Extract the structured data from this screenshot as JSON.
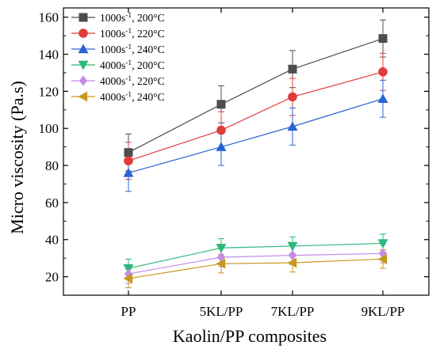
{
  "chart_data": {
    "type": "line",
    "xlabel": "Kaolin/PP composites",
    "ylabel": "Micro viscosity (Pa.s)",
    "categories": [
      "PP",
      "5KL/PP",
      "7KL/PP",
      "9KL/PP"
    ],
    "ylim": [
      10,
      165
    ],
    "yticks": [
      20,
      40,
      60,
      80,
      100,
      120,
      140,
      160
    ],
    "grid": false,
    "legend_position": "top-left",
    "series": [
      {
        "name_main": "1000s",
        "name_sup": "-1",
        "name_rest": ", 200°C",
        "color": "#4d4d4d",
        "marker": "square",
        "values": [
          87,
          113,
          132,
          148.5
        ],
        "errors": [
          10,
          10,
          10,
          10
        ]
      },
      {
        "name_main": "1000s",
        "name_sup": "-1",
        "name_rest": ", 220°C",
        "color": "#e03c3c",
        "marker": "circle",
        "values": [
          82.5,
          99,
          117,
          130.5
        ],
        "errors": [
          10,
          10,
          10,
          10
        ]
      },
      {
        "name_main": "1000s",
        "name_sup": "-1",
        "name_rest": ", 240°C",
        "color": "#2a63d4",
        "marker": "triangle-up",
        "values": [
          76,
          90,
          101,
          116
        ],
        "errors": [
          10,
          10,
          10,
          10
        ]
      },
      {
        "name_main": "4000s",
        "name_sup": "-1",
        "name_rest": ", 200°C",
        "color": "#2db87a",
        "marker": "triangle-down",
        "values": [
          24.5,
          35.5,
          36.5,
          38
        ],
        "errors": [
          5,
          5,
          5,
          5
        ]
      },
      {
        "name_main": "4000s",
        "name_sup": "-1",
        "name_rest": ", 220°C",
        "color": "#c58be8",
        "marker": "diamond",
        "values": [
          21.5,
          30.5,
          31.5,
          32.5
        ],
        "errors": [
          5,
          5,
          5,
          5
        ]
      },
      {
        "name_main": "4000s",
        "name_sup": "-1",
        "name_rest": ", 240°C",
        "color": "#c9971c",
        "marker": "triangle-left",
        "values": [
          19,
          27,
          27.5,
          29.5
        ],
        "errors": [
          5,
          5,
          5,
          5
        ]
      }
    ]
  }
}
